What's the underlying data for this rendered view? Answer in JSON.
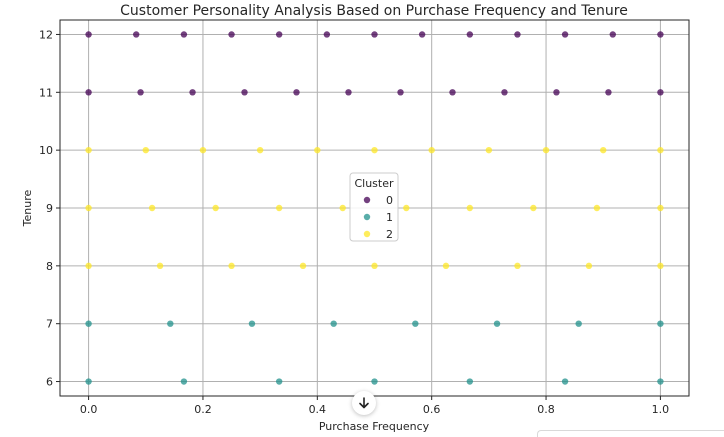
{
  "chart_data": {
    "type": "scatter",
    "title": "Customer Personality Analysis Based on Purchase Frequency and Tenure",
    "xlabel": "Purchase Frequency",
    "ylabel": "Tenure",
    "xlim": [
      -0.05,
      1.05
    ],
    "ylim": [
      5.75,
      12.25
    ],
    "xticks": [
      "0.0",
      "0.2",
      "0.4",
      "0.6",
      "0.8",
      "1.0"
    ],
    "yticks": [
      "6",
      "7",
      "8",
      "9",
      "10",
      "11",
      "12"
    ],
    "grid": true,
    "legend": {
      "title": "Cluster",
      "placement": "center",
      "entries": [
        "0",
        "1",
        "2"
      ]
    },
    "colors": {
      "0": "#440154",
      "1": "#21918c",
      "2": "#fde725"
    },
    "series": [
      {
        "name": "0",
        "points": [
          [
            0.0,
            12
          ],
          [
            0.0833,
            12
          ],
          [
            0.1667,
            12
          ],
          [
            0.25,
            12
          ],
          [
            0.3333,
            12
          ],
          [
            0.4167,
            12
          ],
          [
            0.5,
            12
          ],
          [
            0.5833,
            12
          ],
          [
            0.6667,
            12
          ],
          [
            0.75,
            12
          ],
          [
            0.8333,
            12
          ],
          [
            0.9167,
            12
          ],
          [
            1.0,
            12
          ],
          [
            0.0,
            11
          ],
          [
            0.0909,
            11
          ],
          [
            0.1818,
            11
          ],
          [
            0.2727,
            11
          ],
          [
            0.3636,
            11
          ],
          [
            0.4545,
            11
          ],
          [
            0.5455,
            11
          ],
          [
            0.6364,
            11
          ],
          [
            0.7273,
            11
          ],
          [
            0.8182,
            11
          ],
          [
            0.9091,
            11
          ],
          [
            1.0,
            11
          ]
        ]
      },
      {
        "name": "1",
        "points": [
          [
            0.0,
            7
          ],
          [
            0.1429,
            7
          ],
          [
            0.2857,
            7
          ],
          [
            0.4286,
            7
          ],
          [
            0.5714,
            7
          ],
          [
            0.7143,
            7
          ],
          [
            0.8571,
            7
          ],
          [
            1.0,
            7
          ],
          [
            0.0,
            6
          ],
          [
            0.1667,
            6
          ],
          [
            0.3333,
            6
          ],
          [
            0.5,
            6
          ],
          [
            0.6667,
            6
          ],
          [
            0.8333,
            6
          ],
          [
            1.0,
            6
          ]
        ]
      },
      {
        "name": "2",
        "points": [
          [
            0.0,
            10
          ],
          [
            0.1,
            10
          ],
          [
            0.2,
            10
          ],
          [
            0.3,
            10
          ],
          [
            0.4,
            10
          ],
          [
            0.5,
            10
          ],
          [
            0.6,
            10
          ],
          [
            0.7,
            10
          ],
          [
            0.8,
            10
          ],
          [
            0.9,
            10
          ],
          [
            1.0,
            10
          ],
          [
            0.0,
            9
          ],
          [
            0.1111,
            9
          ],
          [
            0.2222,
            9
          ],
          [
            0.3333,
            9
          ],
          [
            0.4444,
            9
          ],
          [
            0.5556,
            9
          ],
          [
            0.6667,
            9
          ],
          [
            0.7778,
            9
          ],
          [
            0.8889,
            9
          ],
          [
            1.0,
            9
          ],
          [
            0.0,
            8
          ],
          [
            0.125,
            8
          ],
          [
            0.25,
            8
          ],
          [
            0.375,
            8
          ],
          [
            0.5,
            8
          ],
          [
            0.625,
            8
          ],
          [
            0.75,
            8
          ],
          [
            0.875,
            8
          ],
          [
            1.0,
            8
          ]
        ]
      }
    ]
  },
  "ui": {
    "scroll_icon": "arrow-down-icon"
  }
}
